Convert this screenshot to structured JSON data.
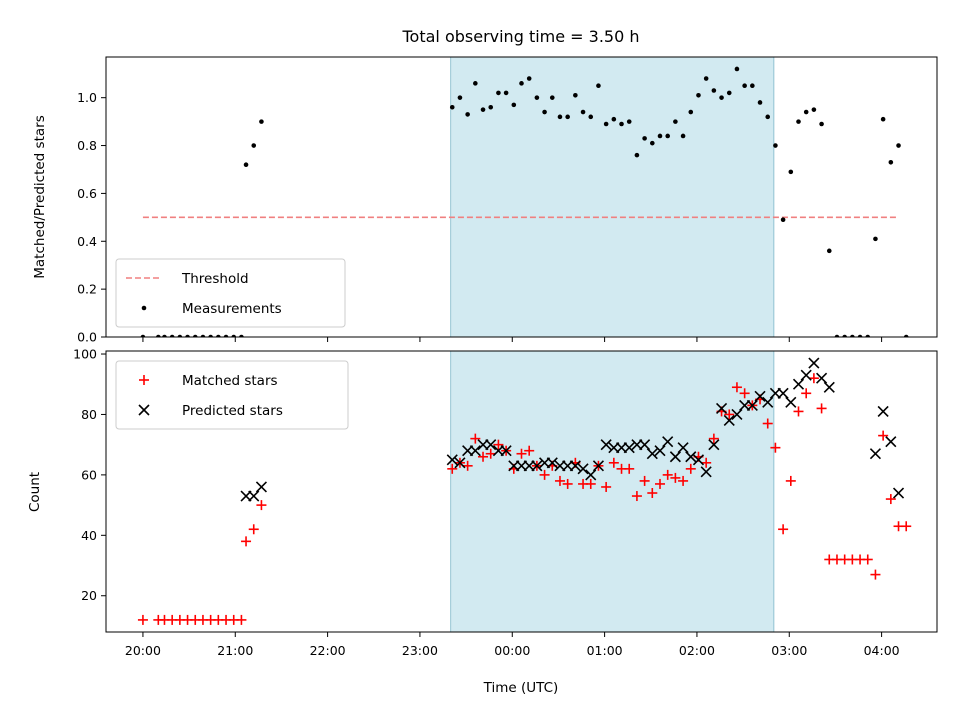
{
  "title": "Total observing time = 3.50 h",
  "xlabel": "Time (UTC)",
  "colors": {
    "highlight": "#add8e6",
    "threshold": "#f08080",
    "measurements": "#000000",
    "matched": "#ff0000",
    "predicted": "#000000"
  },
  "chart_data": [
    {
      "type": "scatter",
      "ylabel": "Matched/Predicted stars",
      "ylim": [
        0,
        1.17
      ],
      "xlim": [
        "19:36",
        "04:36"
      ],
      "x_unit": "time of day (UTC)",
      "yticks": [
        "0.0",
        "0.2",
        "0.4",
        "0.6",
        "0.8",
        "1.0"
      ],
      "xticks": [
        "20:00",
        "21:00",
        "22:00",
        "23:00",
        "00:00",
        "01:00",
        "02:00",
        "03:00",
        "04:00"
      ],
      "highlight_span": [
        "23:20",
        "02:50"
      ],
      "legend_position": "lower left",
      "threshold": {
        "name": "Threshold",
        "y": 0.5,
        "x_range": [
          "20:00",
          "04:10"
        ],
        "style": "dashed"
      },
      "series": [
        {
          "name": "Measurements",
          "marker": "dot",
          "points": [
            [
              "20:00",
              0.0
            ],
            [
              "20:10",
              0.0
            ],
            [
              "20:14",
              0.0
            ],
            [
              "20:19",
              0.0
            ],
            [
              "20:24",
              0.0
            ],
            [
              "20:29",
              0.0
            ],
            [
              "20:34",
              0.0
            ],
            [
              "20:39",
              0.0
            ],
            [
              "20:44",
              0.0
            ],
            [
              "20:49",
              0.0
            ],
            [
              "20:54",
              0.0
            ],
            [
              "20:59",
              0.0
            ],
            [
              "21:04",
              0.0
            ],
            [
              "21:07",
              0.72
            ],
            [
              "21:12",
              0.8
            ],
            [
              "21:17",
              0.9
            ],
            [
              "23:21",
              0.96
            ],
            [
              "23:26",
              1.0
            ],
            [
              "23:31",
              0.93
            ],
            [
              "23:36",
              1.06
            ],
            [
              "23:41",
              0.95
            ],
            [
              "23:46",
              0.96
            ],
            [
              "23:51",
              1.02
            ],
            [
              "23:56",
              1.02
            ],
            [
              "00:01",
              0.97
            ],
            [
              "00:06",
              1.06
            ],
            [
              "00:11",
              1.08
            ],
            [
              "00:16",
              1.0
            ],
            [
              "00:21",
              0.94
            ],
            [
              "00:26",
              1.0
            ],
            [
              "00:31",
              0.92
            ],
            [
              "00:36",
              0.92
            ],
            [
              "00:41",
              1.01
            ],
            [
              "00:46",
              0.94
            ],
            [
              "00:51",
              0.92
            ],
            [
              "00:56",
              1.05
            ],
            [
              "01:01",
              0.89
            ],
            [
              "01:06",
              0.91
            ],
            [
              "01:11",
              0.89
            ],
            [
              "01:16",
              0.9
            ],
            [
              "01:21",
              0.76
            ],
            [
              "01:26",
              0.83
            ],
            [
              "01:31",
              0.81
            ],
            [
              "01:36",
              0.84
            ],
            [
              "01:41",
              0.84
            ],
            [
              "01:46",
              0.9
            ],
            [
              "01:51",
              0.84
            ],
            [
              "01:56",
              0.94
            ],
            [
              "02:01",
              1.01
            ],
            [
              "02:06",
              1.08
            ],
            [
              "02:11",
              1.03
            ],
            [
              "02:16",
              1.0
            ],
            [
              "02:21",
              1.02
            ],
            [
              "02:26",
              1.12
            ],
            [
              "02:31",
              1.05
            ],
            [
              "02:36",
              1.05
            ],
            [
              "02:41",
              0.98
            ],
            [
              "02:46",
              0.92
            ],
            [
              "02:51",
              0.8
            ],
            [
              "02:56",
              0.49
            ],
            [
              "03:01",
              0.69
            ],
            [
              "03:06",
              0.9
            ],
            [
              "03:11",
              0.94
            ],
            [
              "03:16",
              0.95
            ],
            [
              "03:21",
              0.89
            ],
            [
              "03:26",
              0.36
            ],
            [
              "03:31",
              0.0
            ],
            [
              "03:36",
              0.0
            ],
            [
              "03:41",
              0.0
            ],
            [
              "03:46",
              0.0
            ],
            [
              "03:51",
              0.0
            ],
            [
              "03:56",
              0.41
            ],
            [
              "04:01",
              0.91
            ],
            [
              "04:06",
              0.73
            ],
            [
              "04:11",
              0.8
            ],
            [
              "04:16",
              0.0
            ]
          ]
        }
      ]
    },
    {
      "type": "scatter",
      "ylabel": "Count",
      "ylim": [
        8,
        101
      ],
      "xlim": [
        "19:36",
        "04:36"
      ],
      "x_unit": "time of day (UTC)",
      "yticks": [
        "20",
        "40",
        "60",
        "80",
        "100"
      ],
      "xticks": [
        "20:00",
        "21:00",
        "22:00",
        "23:00",
        "00:00",
        "01:00",
        "02:00",
        "03:00",
        "04:00"
      ],
      "highlight_span": [
        "23:20",
        "02:50"
      ],
      "legend_position": "upper left",
      "series": [
        {
          "name": "Matched stars",
          "marker": "plus",
          "points": [
            [
              "20:00",
              12
            ],
            [
              "20:10",
              12
            ],
            [
              "20:14",
              12
            ],
            [
              "20:19",
              12
            ],
            [
              "20:24",
              12
            ],
            [
              "20:29",
              12
            ],
            [
              "20:34",
              12
            ],
            [
              "20:39",
              12
            ],
            [
              "20:44",
              12
            ],
            [
              "20:49",
              12
            ],
            [
              "20:54",
              12
            ],
            [
              "20:59",
              12
            ],
            [
              "21:04",
              12
            ],
            [
              "21:07",
              38
            ],
            [
              "21:12",
              42
            ],
            [
              "21:17",
              50
            ],
            [
              "23:21",
              62
            ],
            [
              "23:26",
              64
            ],
            [
              "23:31",
              63
            ],
            [
              "23:36",
              72
            ],
            [
              "23:41",
              66
            ],
            [
              "23:46",
              67
            ],
            [
              "23:51",
              70
            ],
            [
              "23:56",
              68
            ],
            [
              "00:01",
              62
            ],
            [
              "00:06",
              67
            ],
            [
              "00:11",
              68
            ],
            [
              "00:16",
              63
            ],
            [
              "00:21",
              60
            ],
            [
              "00:26",
              63
            ],
            [
              "00:31",
              58
            ],
            [
              "00:36",
              57
            ],
            [
              "00:41",
              64
            ],
            [
              "00:46",
              57
            ],
            [
              "00:51",
              57
            ],
            [
              "00:56",
              63
            ],
            [
              "01:01",
              56
            ],
            [
              "01:06",
              64
            ],
            [
              "01:11",
              62
            ],
            [
              "01:16",
              62
            ],
            [
              "01:21",
              53
            ],
            [
              "01:26",
              58
            ],
            [
              "01:31",
              54
            ],
            [
              "01:36",
              57
            ],
            [
              "01:41",
              60
            ],
            [
              "01:46",
              59
            ],
            [
              "01:51",
              58
            ],
            [
              "01:56",
              62
            ],
            [
              "02:01",
              66
            ],
            [
              "02:06",
              64
            ],
            [
              "02:11",
              72
            ],
            [
              "02:16",
              81
            ],
            [
              "02:21",
              80
            ],
            [
              "02:26",
              89
            ],
            [
              "02:31",
              87
            ],
            [
              "02:36",
              83
            ],
            [
              "02:41",
              85
            ],
            [
              "02:46",
              77
            ],
            [
              "02:51",
              69
            ],
            [
              "02:56",
              42
            ],
            [
              "03:01",
              58
            ],
            [
              "03:06",
              81
            ],
            [
              "03:11",
              87
            ],
            [
              "03:16",
              92
            ],
            [
              "03:21",
              82
            ],
            [
              "03:26",
              32
            ],
            [
              "03:31",
              32
            ],
            [
              "03:36",
              32
            ],
            [
              "03:41",
              32
            ],
            [
              "03:46",
              32
            ],
            [
              "03:51",
              32
            ],
            [
              "03:56",
              27
            ],
            [
              "04:01",
              73
            ],
            [
              "04:06",
              52
            ],
            [
              "04:11",
              43
            ],
            [
              "04:16",
              43
            ]
          ]
        },
        {
          "name": "Predicted stars",
          "marker": "x",
          "points": [
            [
              "21:07",
              53
            ],
            [
              "21:12",
              53
            ],
            [
              "21:17",
              56
            ],
            [
              "23:21",
              65
            ],
            [
              "23:26",
              64
            ],
            [
              "23:31",
              68
            ],
            [
              "23:36",
              68
            ],
            [
              "23:41",
              70
            ],
            [
              "23:46",
              70
            ],
            [
              "23:51",
              68
            ],
            [
              "23:56",
              68
            ],
            [
              "00:01",
              63
            ],
            [
              "00:06",
              63
            ],
            [
              "00:11",
              63
            ],
            [
              "00:16",
              63
            ],
            [
              "00:21",
              64
            ],
            [
              "00:26",
              64
            ],
            [
              "00:31",
              63
            ],
            [
              "00:36",
              63
            ],
            [
              "00:41",
              63
            ],
            [
              "00:46",
              62
            ],
            [
              "00:51",
              60
            ],
            [
              "00:56",
              63
            ],
            [
              "01:01",
              70
            ],
            [
              "01:06",
              69
            ],
            [
              "01:11",
              69
            ],
            [
              "01:16",
              69
            ],
            [
              "01:21",
              70
            ],
            [
              "01:26",
              70
            ],
            [
              "01:31",
              67
            ],
            [
              "01:36",
              68
            ],
            [
              "01:41",
              71
            ],
            [
              "01:46",
              66
            ],
            [
              "01:51",
              69
            ],
            [
              "01:56",
              66
            ],
            [
              "02:01",
              65
            ],
            [
              "02:06",
              61
            ],
            [
              "02:11",
              70
            ],
            [
              "02:16",
              82
            ],
            [
              "02:21",
              78
            ],
            [
              "02:26",
              80
            ],
            [
              "02:31",
              83
            ],
            [
              "02:36",
              83
            ],
            [
              "02:41",
              86
            ],
            [
              "02:46",
              84
            ],
            [
              "02:51",
              87
            ],
            [
              "02:56",
              87
            ],
            [
              "03:01",
              84
            ],
            [
              "03:06",
              90
            ],
            [
              "03:11",
              93
            ],
            [
              "03:16",
              97
            ],
            [
              "03:21",
              92
            ],
            [
              "03:26",
              89
            ],
            [
              "03:56",
              67
            ],
            [
              "04:01",
              81
            ],
            [
              "04:06",
              71
            ],
            [
              "04:11",
              54
            ]
          ]
        }
      ]
    }
  ]
}
